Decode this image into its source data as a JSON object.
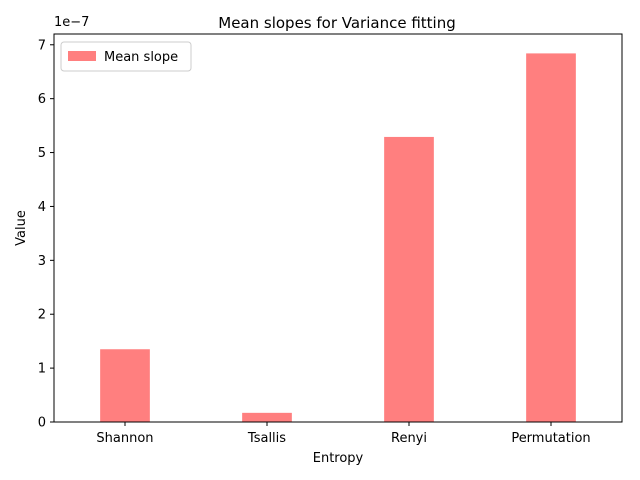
{
  "chart_data": {
    "type": "bar",
    "title": "Mean slopes for Variance fitting",
    "xlabel": "Entropy",
    "ylabel": "Value",
    "categories": [
      "Shannon",
      "Tsallis",
      "Renyi",
      "Permutation"
    ],
    "series": [
      {
        "name": "Mean slope",
        "color": "#ff7f7f",
        "values": [
          1.35e-07,
          1.7e-08,
          5.29e-07,
          6.84e-07
        ]
      }
    ],
    "ylim": [
      0,
      7.2e-07
    ],
    "yticks": [
      "0",
      "1",
      "2",
      "3",
      "4",
      "5",
      "6",
      "7"
    ],
    "offset_label": "1e−7",
    "legend": {
      "placement": "upper-left"
    },
    "grid": false
  }
}
